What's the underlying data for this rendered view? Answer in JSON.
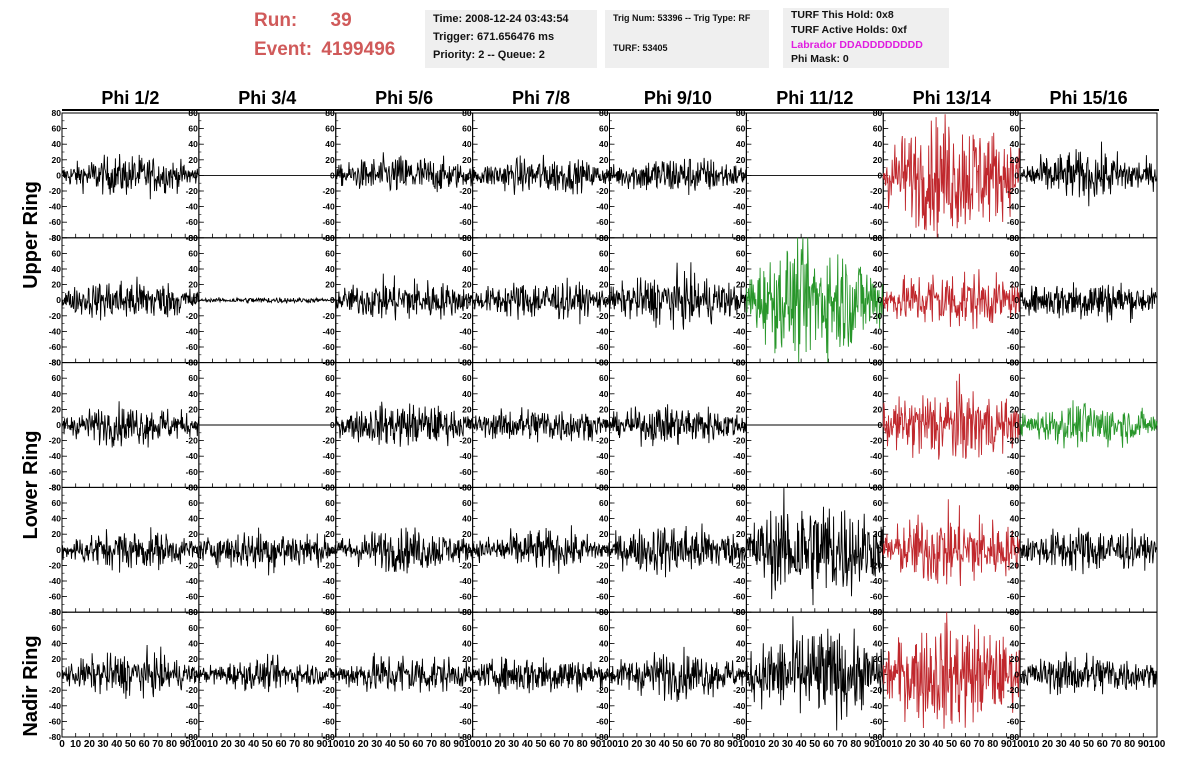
{
  "header": {
    "run_label": "Run:",
    "run_value": "39",
    "event_label": "Event:",
    "event_value": "4199496",
    "time": "Time: 2008-12-24 03:43:54",
    "trigger": "Trigger: 671.656476 ms",
    "priority": "Priority: 2 -- Queue: 2",
    "trig_num": "Trig Num: 53396 -- Trig Type: RF",
    "turf": "TURF: 53405",
    "turf_hold": "TURF This Hold: 0x8",
    "turf_active": "TURF Active Holds: 0xf",
    "labrador": "Labrador DDADDDDDDDD",
    "phi_mask": "Phi Mask: 0"
  },
  "colors": {
    "header_red": "#d05a5a",
    "labrador_magenta": "#e01ee0",
    "trace_black": "#000000",
    "trace_red": "#c0282d",
    "trace_green": "#28962a",
    "info_box_bg": "#efefef"
  },
  "chart_data": {
    "type": "line",
    "columns": [
      "Phi 1/2",
      "Phi 3/4",
      "Phi 5/6",
      "Phi 7/8",
      "Phi 9/10",
      "Phi 11/12",
      "Phi 13/14",
      "Phi 15/16"
    ],
    "ring_labels": [
      "Upper Ring",
      "Lower Ring",
      "Nadir Ring"
    ],
    "ylim": [
      -80,
      80
    ],
    "yticks": [
      -80,
      -60,
      -40,
      -20,
      0,
      20,
      40,
      60,
      80
    ],
    "xlim": [
      0,
      100
    ],
    "xticks": [
      0,
      10,
      20,
      30,
      40,
      50,
      60,
      70,
      80,
      90,
      100
    ],
    "grid": false,
    "samples_per_trace": 260,
    "traces": [
      [
        {
          "color": "black",
          "amplitude": 13
        },
        {
          "color": "black",
          "amplitude": 0
        },
        {
          "color": "black",
          "amplitude": 13
        },
        {
          "color": "black",
          "amplitude": 12
        },
        {
          "color": "black",
          "amplitude": 13
        },
        {
          "color": "black",
          "amplitude": 0
        },
        {
          "color": "red",
          "amplitude": 38
        },
        {
          "color": "black",
          "amplitude": 16
        }
      ],
      [
        {
          "color": "black",
          "amplitude": 14
        },
        {
          "color": "black",
          "amplitude": 2
        },
        {
          "color": "black",
          "amplitude": 14
        },
        {
          "color": "black",
          "amplitude": 13
        },
        {
          "color": "black",
          "amplitude": 17
        },
        {
          "color": "green",
          "amplitude": 38
        },
        {
          "color": "red",
          "amplitude": 20
        },
        {
          "color": "black",
          "amplitude": 14
        }
      ],
      [
        {
          "color": "black",
          "amplitude": 13
        },
        {
          "color": "black",
          "amplitude": 0
        },
        {
          "color": "black",
          "amplitude": 14
        },
        {
          "color": "black",
          "amplitude": 12
        },
        {
          "color": "black",
          "amplitude": 13
        },
        {
          "color": "black",
          "amplitude": 0
        },
        {
          "color": "red",
          "amplitude": 25
        },
        {
          "color": "green",
          "amplitude": 14
        }
      ],
      [
        {
          "color": "black",
          "amplitude": 13
        },
        {
          "color": "black",
          "amplitude": 14
        },
        {
          "color": "black",
          "amplitude": 14
        },
        {
          "color": "black",
          "amplitude": 13
        },
        {
          "color": "black",
          "amplitude": 17
        },
        {
          "color": "black",
          "amplitude": 34
        },
        {
          "color": "red",
          "amplitude": 25
        },
        {
          "color": "black",
          "amplitude": 15
        }
      ],
      [
        {
          "color": "black",
          "amplitude": 14
        },
        {
          "color": "black",
          "amplitude": 10
        },
        {
          "color": "black",
          "amplitude": 14
        },
        {
          "color": "black",
          "amplitude": 13
        },
        {
          "color": "black",
          "amplitude": 15
        },
        {
          "color": "black",
          "amplitude": 30
        },
        {
          "color": "red",
          "amplitude": 35
        },
        {
          "color": "black",
          "amplitude": 14
        }
      ]
    ]
  }
}
